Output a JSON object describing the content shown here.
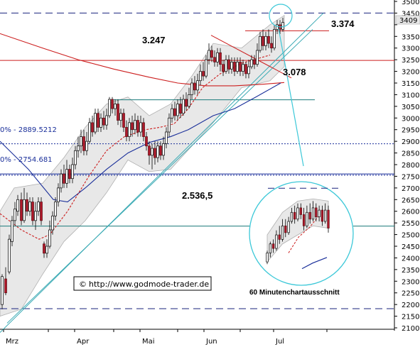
{
  "chart_data": {
    "type": "candlestick",
    "x_axis": {
      "labels": [
        "Mrz",
        "Apr",
        "Mai",
        "Jun",
        "Jul"
      ]
    },
    "y_axis": {
      "range": [
        2100,
        3500
      ],
      "ticks": [
        3500,
        3450,
        3400,
        3350,
        3300,
        3250,
        3200,
        3150,
        3100,
        3050,
        3000,
        2950,
        2900,
        2850,
        2800,
        2750,
        2700,
        2650,
        2600,
        2550,
        2500,
        2450,
        2400,
        2350,
        2300,
        2250,
        2200,
        2150,
        2100
      ],
      "current_price_label": "3409"
    },
    "annotations": {
      "level_3374": "3.374",
      "level_3247": "3.247",
      "level_3078": "3.078",
      "level_2536": "2.536,5",
      "fib_1": "0% - 2889.5212",
      "fib_2": "0% - 2754.681",
      "inset_caption": "60 Minutenchartausschnitt",
      "source": "http://www.godmode-trader.de",
      "copyright_symbol": "©"
    },
    "horizontal_levels": [
      {
        "value": 3450,
        "style": "dashed",
        "color": "#1a237e"
      },
      {
        "value": 3374,
        "style": "solid",
        "color": "#cc1e1e"
      },
      {
        "value": 3247,
        "style": "solid",
        "color": "#cc1e1e"
      },
      {
        "value": 3078,
        "style": "solid",
        "color": "#1a7a7a"
      },
      {
        "value": 2889.5,
        "style": "dotted",
        "color": "#1a2f9a"
      },
      {
        "value": 2760,
        "style": "solid",
        "color": "#1a2f9a"
      },
      {
        "value": 2754.7,
        "style": "dotted",
        "color": "#1a2f9a"
      },
      {
        "value": 2536.5,
        "style": "solid",
        "color": "#1a7a7a"
      },
      {
        "value": 2182,
        "style": "dashed",
        "color": "#1a237e"
      }
    ],
    "moving_averages": [
      {
        "color": "#cc1e1e",
        "style": "solid",
        "points": [
          [
            0,
            3362
          ],
          [
            60,
            3300
          ],
          [
            110,
            3250
          ],
          [
            160,
            3210
          ],
          [
            210,
            3175
          ],
          [
            250,
            3150
          ],
          [
            290,
            3138
          ],
          [
            330,
            3138
          ],
          [
            370,
            3145
          ],
          [
            400,
            3152
          ]
        ]
      },
      {
        "color": "#1a2f9a",
        "style": "solid",
        "points": [
          [
            0,
            2900
          ],
          [
            40,
            2780
          ],
          [
            75,
            2650
          ],
          [
            95,
            2640
          ],
          [
            120,
            2700
          ],
          [
            150,
            2780
          ],
          [
            180,
            2850
          ],
          [
            210,
            2895
          ],
          [
            240,
            2920
          ],
          [
            265,
            2950
          ],
          [
            300,
            3010
          ],
          [
            330,
            3040
          ],
          [
            360,
            3090
          ],
          [
            395,
            3150
          ]
        ]
      },
      {
        "color": "#cc1e1e",
        "style": "dashed",
        "points": [
          [
            0,
            2590
          ],
          [
            30,
            2520
          ],
          [
            55,
            2480
          ],
          [
            70,
            2500
          ],
          [
            95,
            2600
          ],
          [
            125,
            2750
          ],
          [
            150,
            2860
          ],
          [
            175,
            2920
          ],
          [
            205,
            2950
          ],
          [
            225,
            2960
          ],
          [
            245,
            2975
          ],
          [
            265,
            3040
          ],
          [
            285,
            3130
          ],
          [
            310,
            3190
          ],
          [
            340,
            3235
          ],
          [
            380,
            3270
          ]
        ]
      }
    ],
    "candles": [
      [
        3,
        2200,
        2320,
        2180,
        2330
      ],
      [
        8,
        2310,
        2250,
        2240,
        2360
      ],
      [
        13,
        2340,
        2480,
        2330,
        2500
      ],
      [
        17,
        2470,
        2560,
        2450,
        2580
      ],
      [
        21,
        2560,
        2610,
        2540,
        2640
      ],
      [
        25,
        2600,
        2650,
        2580,
        2670
      ],
      [
        30,
        2650,
        2560,
        2540,
        2680
      ],
      [
        34,
        2560,
        2650,
        2550,
        2700
      ],
      [
        38,
        2650,
        2600,
        2580,
        2680
      ],
      [
        42,
        2600,
        2640,
        2580,
        2660
      ],
      [
        46,
        2640,
        2560,
        2540,
        2660
      ],
      [
        50,
        2560,
        2600,
        2520,
        2640
      ],
      [
        54,
        2600,
        2640,
        2580,
        2660
      ],
      [
        58,
        2640,
        2560,
        2540,
        2660
      ],
      [
        62,
        2460,
        2420,
        2400,
        2470
      ],
      [
        66,
        2420,
        2450,
        2400,
        2480
      ],
      [
        70,
        2450,
        2520,
        2440,
        2560
      ],
      [
        74,
        2520,
        2580,
        2500,
        2600
      ],
      [
        78,
        2580,
        2640,
        2560,
        2660
      ],
      [
        82,
        2640,
        2700,
        2620,
        2720
      ],
      [
        86,
        2700,
        2760,
        2680,
        2780
      ],
      [
        90,
        2760,
        2720,
        2700,
        2800
      ],
      [
        94,
        2720,
        2780,
        2700,
        2820
      ],
      [
        98,
        2780,
        2740,
        2720,
        2800
      ],
      [
        102,
        2740,
        2800,
        2720,
        2830
      ],
      [
        106,
        2800,
        2860,
        2780,
        2880
      ],
      [
        110,
        2860,
        2880,
        2830,
        2920
      ],
      [
        114,
        2880,
        2920,
        2850,
        2950
      ],
      [
        118,
        2920,
        2860,
        2840,
        2950
      ],
      [
        122,
        2860,
        2900,
        2840,
        2940
      ],
      [
        126,
        2900,
        2980,
        2890,
        3000
      ],
      [
        130,
        2980,
        2940,
        2920,
        3010
      ],
      [
        134,
        2940,
        3020,
        2930,
        3040
      ],
      [
        138,
        3020,
        2960,
        2940,
        3040
      ],
      [
        142,
        2960,
        3000,
        2940,
        3020
      ],
      [
        146,
        3000,
        2970,
        2950,
        3030
      ],
      [
        150,
        2970,
        3010,
        2950,
        3040
      ],
      [
        154,
        3010,
        3080,
        3000,
        3090
      ],
      [
        158,
        3080,
        3040,
        3020,
        3090
      ],
      [
        162,
        3040,
        3060,
        3010,
        3080
      ],
      [
        166,
        3060,
        2990,
        2970,
        3080
      ],
      [
        170,
        2990,
        3020,
        2960,
        3040
      ],
      [
        174,
        3020,
        2960,
        2940,
        3040
      ],
      [
        178,
        2960,
        2920,
        2900,
        2990
      ],
      [
        182,
        2920,
        2980,
        2900,
        3000
      ],
      [
        186,
        2980,
        2950,
        2920,
        3010
      ],
      [
        190,
        2950,
        2990,
        2930,
        3020
      ],
      [
        194,
        2990,
        2940,
        2920,
        3010
      ],
      [
        198,
        2940,
        2980,
        2920,
        3010
      ],
      [
        202,
        2980,
        2920,
        2900,
        3000
      ],
      [
        206,
        2920,
        2880,
        2860,
        2940
      ],
      [
        210,
        2880,
        2840,
        2800,
        2900
      ],
      [
        214,
        2840,
        2870,
        2780,
        2890
      ],
      [
        218,
        2870,
        2830,
        2800,
        2900
      ],
      [
        222,
        2830,
        2880,
        2810,
        2900
      ],
      [
        226,
        2880,
        2840,
        2820,
        2900
      ],
      [
        230,
        2840,
        2890,
        2820,
        2920
      ],
      [
        234,
        2890,
        2940,
        2870,
        2960
      ],
      [
        238,
        2940,
        3000,
        2920,
        3020
      ],
      [
        242,
        3000,
        3040,
        2980,
        3060
      ],
      [
        246,
        3040,
        3010,
        2990,
        3070
      ],
      [
        250,
        3010,
        3060,
        2990,
        3080
      ],
      [
        254,
        3060,
        3020,
        3000,
        3090
      ],
      [
        258,
        3020,
        3080,
        3010,
        3100
      ],
      [
        262,
        3080,
        3050,
        3030,
        3110
      ],
      [
        266,
        3050,
        3100,
        3040,
        3130
      ],
      [
        270,
        3100,
        3150,
        3080,
        3170
      ],
      [
        274,
        3150,
        3120,
        3100,
        3180
      ],
      [
        278,
        3120,
        3160,
        3100,
        3190
      ],
      [
        282,
        3160,
        3200,
        3140,
        3230
      ],
      [
        286,
        3200,
        3180,
        3160,
        3240
      ],
      [
        290,
        3180,
        3250,
        3170,
        3270
      ],
      [
        294,
        3250,
        3290,
        3230,
        3320
      ],
      [
        298,
        3290,
        3260,
        3240,
        3310
      ],
      [
        302,
        3260,
        3240,
        3220,
        3290
      ],
      [
        306,
        3240,
        3280,
        3220,
        3300
      ],
      [
        310,
        3280,
        3230,
        3200,
        3300
      ],
      [
        314,
        3230,
        3200,
        3180,
        3250
      ],
      [
        318,
        3200,
        3250,
        3190,
        3270
      ],
      [
        322,
        3250,
        3210,
        3190,
        3270
      ],
      [
        326,
        3210,
        3240,
        3190,
        3260
      ],
      [
        330,
        3240,
        3200,
        3180,
        3260
      ],
      [
        334,
        3200,
        3240,
        3190,
        3260
      ],
      [
        338,
        3240,
        3200,
        3180,
        3260
      ],
      [
        342,
        3200,
        3230,
        3180,
        3250
      ],
      [
        346,
        3230,
        3190,
        3170,
        3240
      ],
      [
        350,
        3190,
        3220,
        3170,
        3250
      ],
      [
        354,
        3220,
        3250,
        3210,
        3270
      ],
      [
        358,
        3250,
        3230,
        3210,
        3270
      ],
      [
        362,
        3230,
        3290,
        3220,
        3320
      ],
      [
        366,
        3290,
        3350,
        3280,
        3370
      ],
      [
        370,
        3350,
        3310,
        3290,
        3380
      ],
      [
        374,
        3310,
        3350,
        3290,
        3370
      ],
      [
        378,
        3350,
        3320,
        3300,
        3380
      ],
      [
        382,
        3320,
        3300,
        3280,
        3350
      ],
      [
        386,
        3300,
        3380,
        3290,
        3400
      ],
      [
        390,
        3380,
        3400,
        3360,
        3420
      ],
      [
        394,
        3400,
        3380,
        3360,
        3420
      ],
      [
        398,
        3380,
        3410,
        3370,
        3430
      ]
    ],
    "inset": {
      "description_points": "intraday 60-min excerpt",
      "candles": [
        [
          380,
          2300,
          2340,
          2290,
          2350
        ],
        [
          384,
          2340,
          2380,
          2320,
          2390
        ],
        [
          388,
          2380,
          2360,
          2340,
          2400
        ],
        [
          392,
          2360,
          2420,
          2350,
          2440
        ],
        [
          396,
          2420,
          2400,
          2380,
          2460
        ],
        [
          400,
          2400,
          2460,
          2390,
          2490
        ],
        [
          404,
          2460,
          2430,
          2410,
          2490
        ],
        [
          408,
          2430,
          2480,
          2420,
          2500
        ],
        [
          412,
          2480,
          2520,
          2470,
          2540
        ],
        [
          416,
          2520,
          2490,
          2470,
          2550
        ],
        [
          420,
          2490,
          2540,
          2480,
          2560
        ],
        [
          424,
          2540,
          2510,
          2490,
          2560
        ],
        [
          428,
          2510,
          2460,
          2440,
          2540
        ],
        [
          432,
          2460,
          2520,
          2450,
          2550
        ],
        [
          436,
          2520,
          2490,
          2470,
          2560
        ],
        [
          440,
          2490,
          2540,
          2480,
          2570
        ],
        [
          444,
          2540,
          2500,
          2480,
          2560
        ],
        [
          448,
          2500,
          2530,
          2480,
          2550
        ],
        [
          452,
          2530,
          2480,
          2460,
          2550
        ],
        [
          456,
          2480,
          2530,
          2470,
          2560
        ],
        [
          460,
          2530,
          2450,
          2430,
          2550
        ]
      ]
    }
  }
}
